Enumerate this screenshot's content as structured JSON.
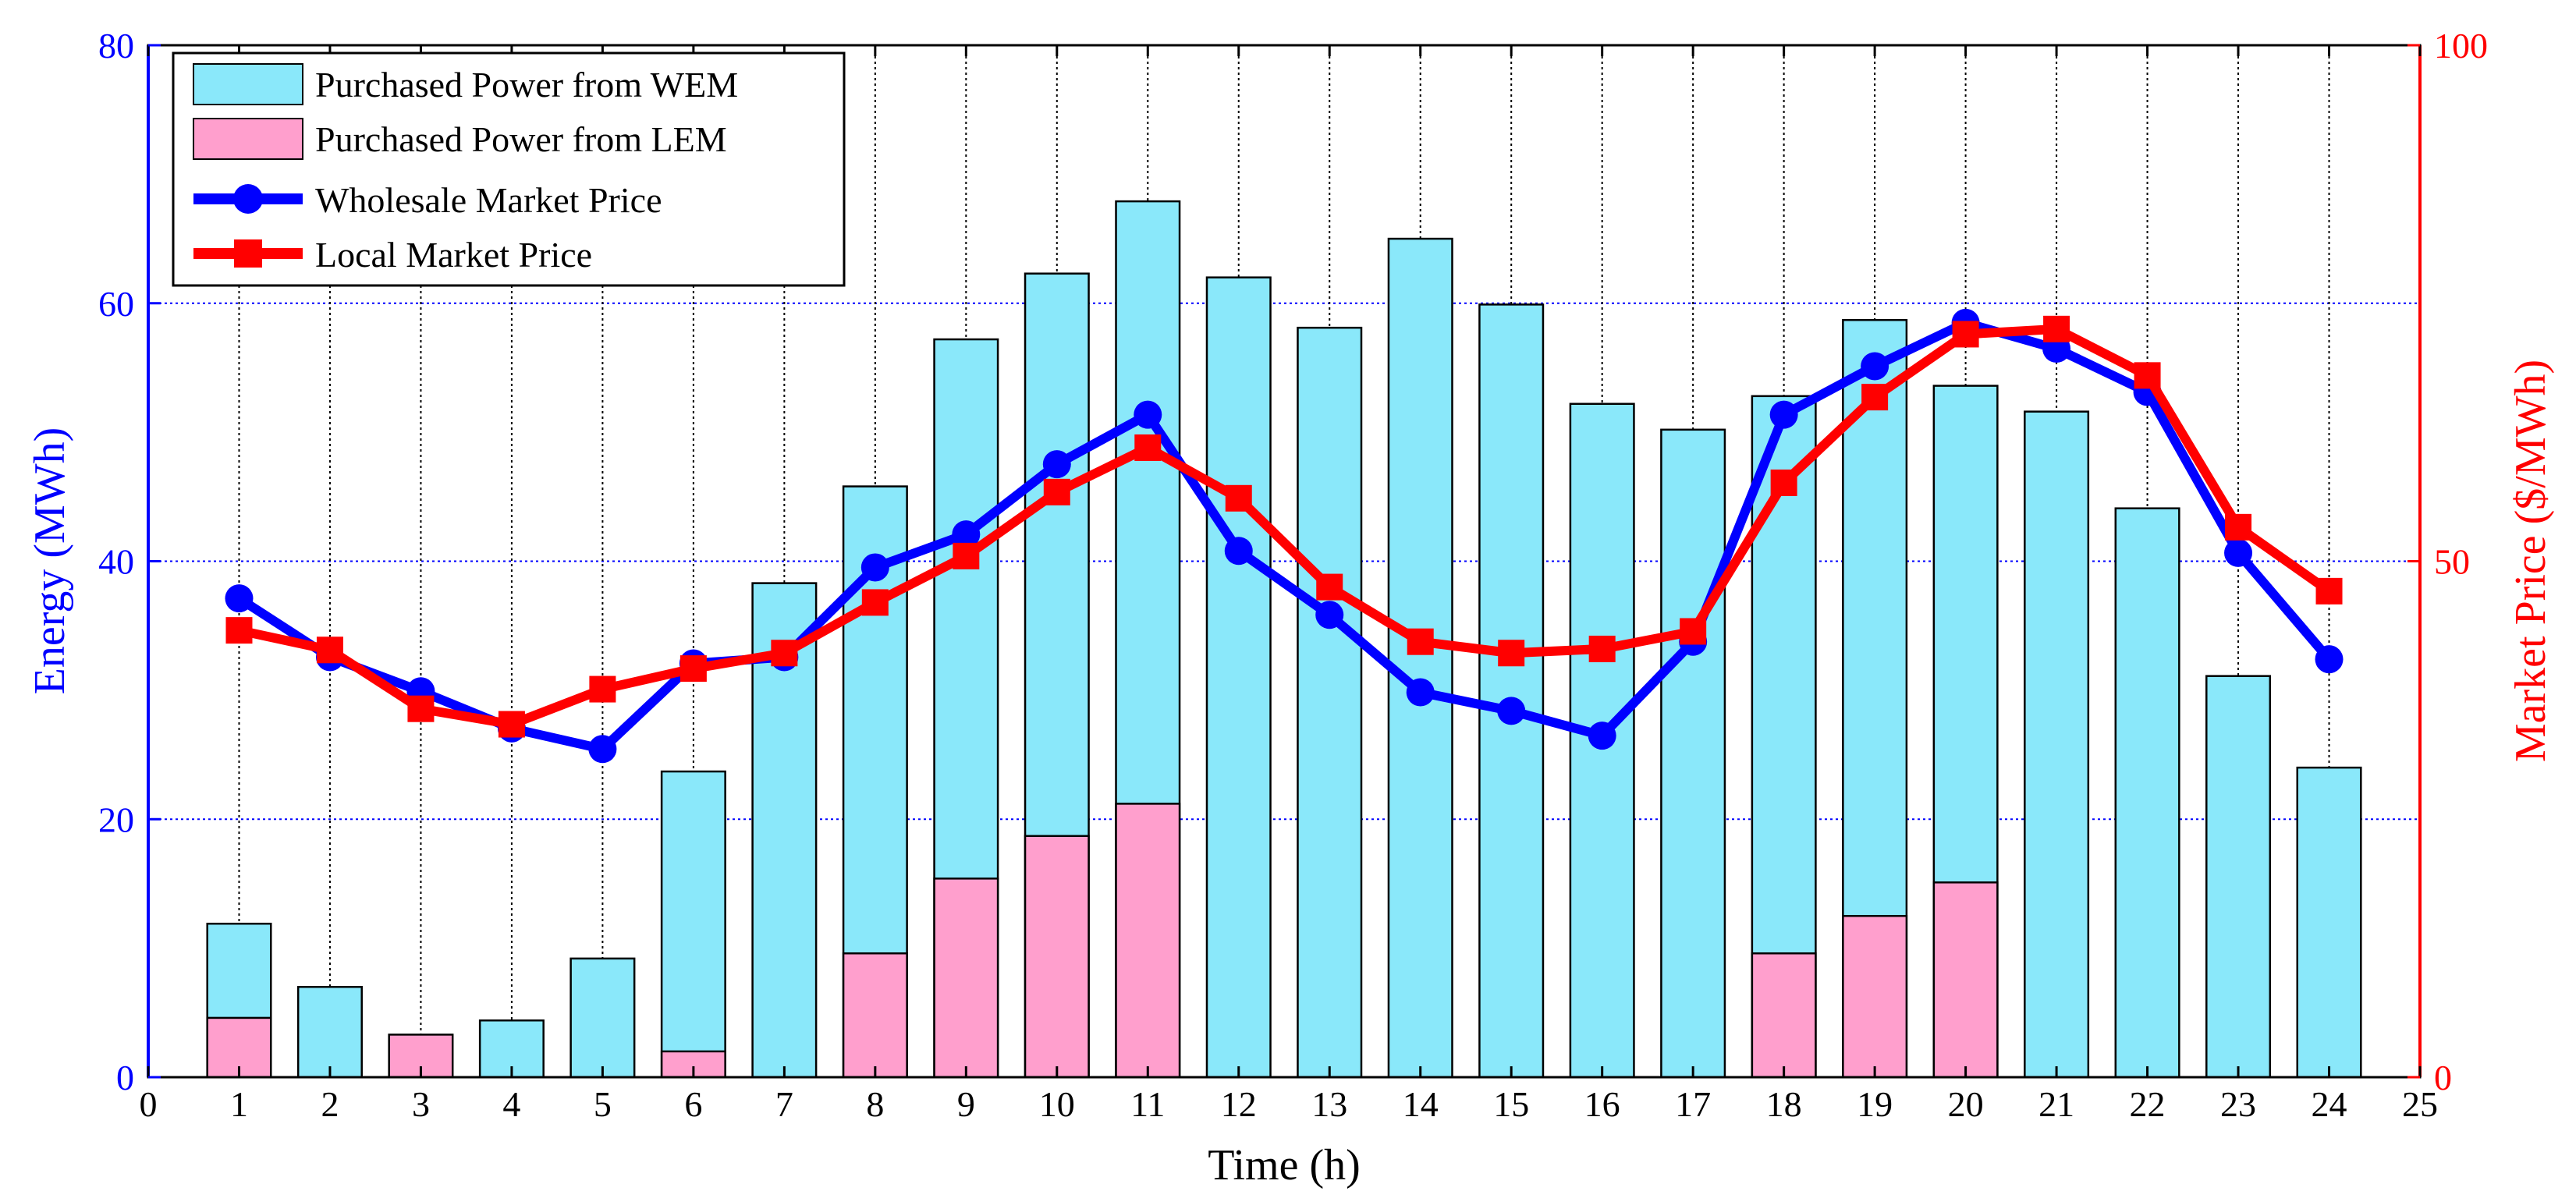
{
  "chart_data": {
    "type": "bar",
    "title": "",
    "xlabel": "Time (h)",
    "ylabel_left": "Energy (MWh)",
    "ylabel_right": "Market Price ($/MWh)",
    "xlim": [
      0,
      25
    ],
    "ylim_left": [
      0,
      80
    ],
    "ylim_right": [
      0,
      100
    ],
    "x_ticks": [
      "0",
      "1",
      "2",
      "3",
      "4",
      "5",
      "6",
      "7",
      "8",
      "9",
      "10",
      "11",
      "12",
      "13",
      "14",
      "15",
      "16",
      "17",
      "18",
      "19",
      "20",
      "21",
      "22",
      "23",
      "24",
      "25"
    ],
    "y_left_ticks": [
      "0",
      "20",
      "40",
      "60",
      "80"
    ],
    "y_right_ticks": [
      "0",
      "50",
      "100"
    ],
    "categories": [
      "1",
      "2",
      "3",
      "4",
      "5",
      "6",
      "7",
      "8",
      "9",
      "10",
      "11",
      "12",
      "13",
      "14",
      "15",
      "16",
      "17",
      "18",
      "19",
      "20",
      "21",
      "22",
      "23",
      "24"
    ],
    "bar_series": [
      {
        "name": "Purchased Power from WEM",
        "axis": "left",
        "color": "#8ae8fa",
        "values": [
          11.9,
          7.0,
          0,
          4.4,
          9.2,
          23.7,
          38.3,
          45.8,
          57.2,
          62.3,
          67.9,
          62.0,
          58.1,
          65.0,
          59.9,
          52.2,
          50.2,
          52.8,
          58.7,
          53.6,
          51.6,
          44.1,
          31.1,
          24.0
        ]
      },
      {
        "name": "Purchased Power from LEM",
        "axis": "left",
        "color": "#ff9fcd",
        "values": [
          4.6,
          0,
          3.3,
          0,
          0,
          2.0,
          0,
          9.6,
          15.4,
          18.7,
          21.2,
          0,
          0,
          0,
          0,
          0,
          0,
          9.6,
          12.5,
          15.1,
          0,
          0,
          0,
          0
        ]
      }
    ],
    "line_series": [
      {
        "name": "Wholesale Market Price",
        "axis": "right",
        "color": "#0000ff",
        "marker": "circle",
        "values": [
          46.4,
          40.7,
          37.4,
          33.8,
          31.8,
          40.1,
          40.7,
          49.4,
          52.6,
          59.4,
          64.2,
          51.0,
          44.8,
          37.3,
          35.5,
          33.1,
          42.2,
          64.2,
          68.9,
          73.1,
          70.6,
          66.4,
          50.8,
          40.5
        ]
      },
      {
        "name": "Local Market Price",
        "axis": "right",
        "color": "#ff0000",
        "marker": "square",
        "values": [
          43.3,
          41.4,
          35.7,
          34.2,
          37.6,
          39.6,
          41.1,
          46.0,
          50.5,
          56.7,
          61.0,
          56.1,
          47.5,
          42.2,
          41.1,
          41.5,
          43.2,
          57.6,
          65.9,
          72.0,
          72.5,
          68.0,
          53.3,
          47.1
        ]
      }
    ],
    "legend": {
      "position": "top-left",
      "entries": [
        "Purchased Power from WEM",
        "Purchased Power from LEM",
        "Wholesale Market Price",
        "Local Market Price"
      ]
    },
    "grid": true,
    "colors": {
      "left_axis": "#0000ff",
      "right_axis": "#ff0000",
      "grid_horizontal": "#0000ff",
      "grid_vertical": "#000000"
    }
  }
}
